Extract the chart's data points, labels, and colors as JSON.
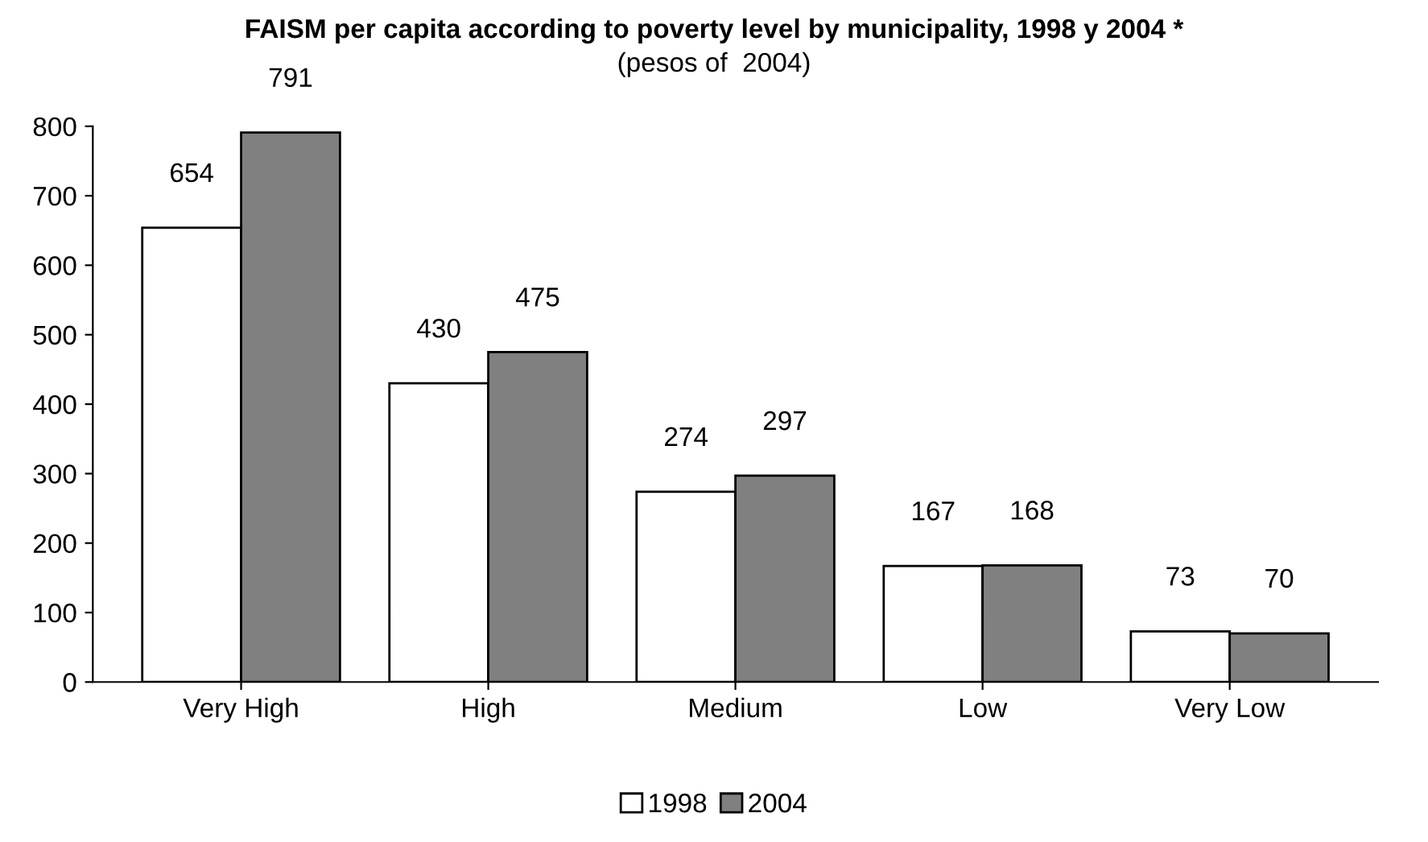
{
  "chart_data": {
    "type": "bar",
    "title": "FAISM per capita according to poverty level by municipality, 1998 y 2004 *",
    "subtitle": "(pesos of  2004)",
    "categories": [
      "Very High",
      "High",
      "Medium",
      "Low",
      "Very Low"
    ],
    "series": [
      {
        "name": "1998",
        "color": "#ffffff",
        "values": [
          654,
          430,
          274,
          167,
          73
        ]
      },
      {
        "name": "2004",
        "color": "#808080",
        "values": [
          791,
          475,
          297,
          168,
          70
        ]
      }
    ],
    "ylim": [
      0,
      800
    ],
    "yticks": [
      0,
      100,
      200,
      300,
      400,
      500,
      600,
      700,
      800
    ],
    "grid": false,
    "legend": "bottom",
    "data_labels": true
  }
}
